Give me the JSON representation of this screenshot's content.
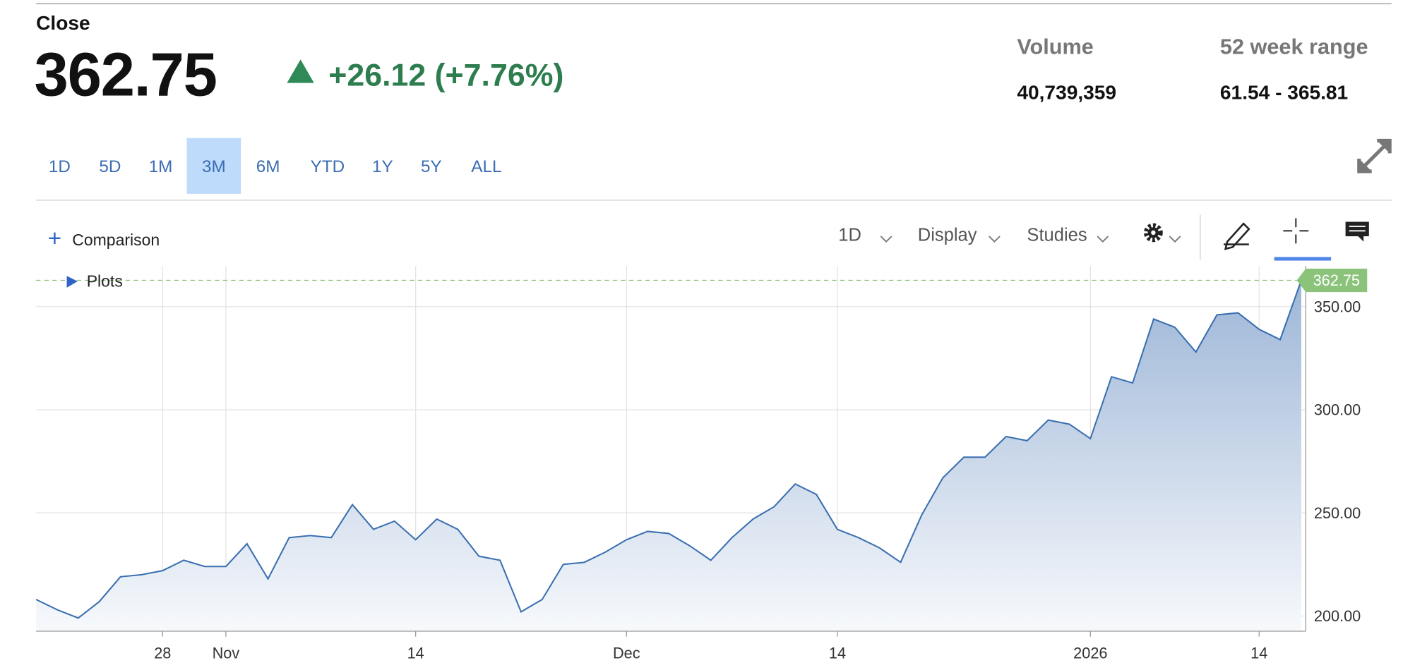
{
  "header": {
    "close_label": "Close",
    "close": "362.75",
    "change": "+26.12 (+7.76%)",
    "volume_label": "Volume",
    "volume": "40,739,359",
    "range_label": "52 week range",
    "range": "61.54 - 365.81"
  },
  "ranges": [
    "1D",
    "5D",
    "1M",
    "3M",
    "6M",
    "YTD",
    "1Y",
    "5Y",
    "ALL"
  ],
  "active_range": 3,
  "toolbar": {
    "comparison": "Comparison",
    "interval": "1D",
    "display": "Display",
    "studies": "Studies",
    "plots": "Plots"
  },
  "chart_data": {
    "type": "area",
    "color": "#3a6fb0",
    "grid": true,
    "categories": [
      null,
      null,
      null,
      null,
      null,
      null,
      "28",
      null,
      null,
      "Nov",
      null,
      null,
      null,
      null,
      null,
      null,
      null,
      null,
      "14",
      null,
      null,
      null,
      null,
      null,
      null,
      null,
      null,
      null,
      "Dec",
      null,
      null,
      null,
      null,
      null,
      null,
      null,
      null,
      null,
      "14",
      null,
      null,
      null,
      null,
      null,
      null,
      null,
      null,
      null,
      null,
      null,
      "2026",
      null,
      null,
      null,
      null,
      null,
      null,
      null,
      "14",
      null,
      null
    ],
    "values": [
      208,
      203,
      199,
      207,
      219,
      220,
      222,
      227,
      224,
      224,
      235,
      218,
      238,
      239,
      238,
      254,
      242,
      246,
      237,
      247,
      242,
      229,
      227,
      202,
      208,
      225,
      226,
      231,
      237,
      241,
      240,
      234,
      227,
      238,
      247,
      253,
      264,
      259,
      242,
      238,
      233,
      226,
      249,
      267,
      277,
      277,
      287,
      285,
      295,
      293,
      286,
      316,
      313,
      344,
      340,
      328,
      346,
      347,
      339,
      334,
      362.75
    ],
    "ylim": [
      192.6,
      369.7
    ],
    "yticks": [
      {
        "value": 200,
        "label": "200.00"
      },
      {
        "value": 250,
        "label": "250.00"
      },
      {
        "value": 300,
        "label": "300.00"
      },
      {
        "value": 350,
        "label": "350.00"
      }
    ]
  }
}
